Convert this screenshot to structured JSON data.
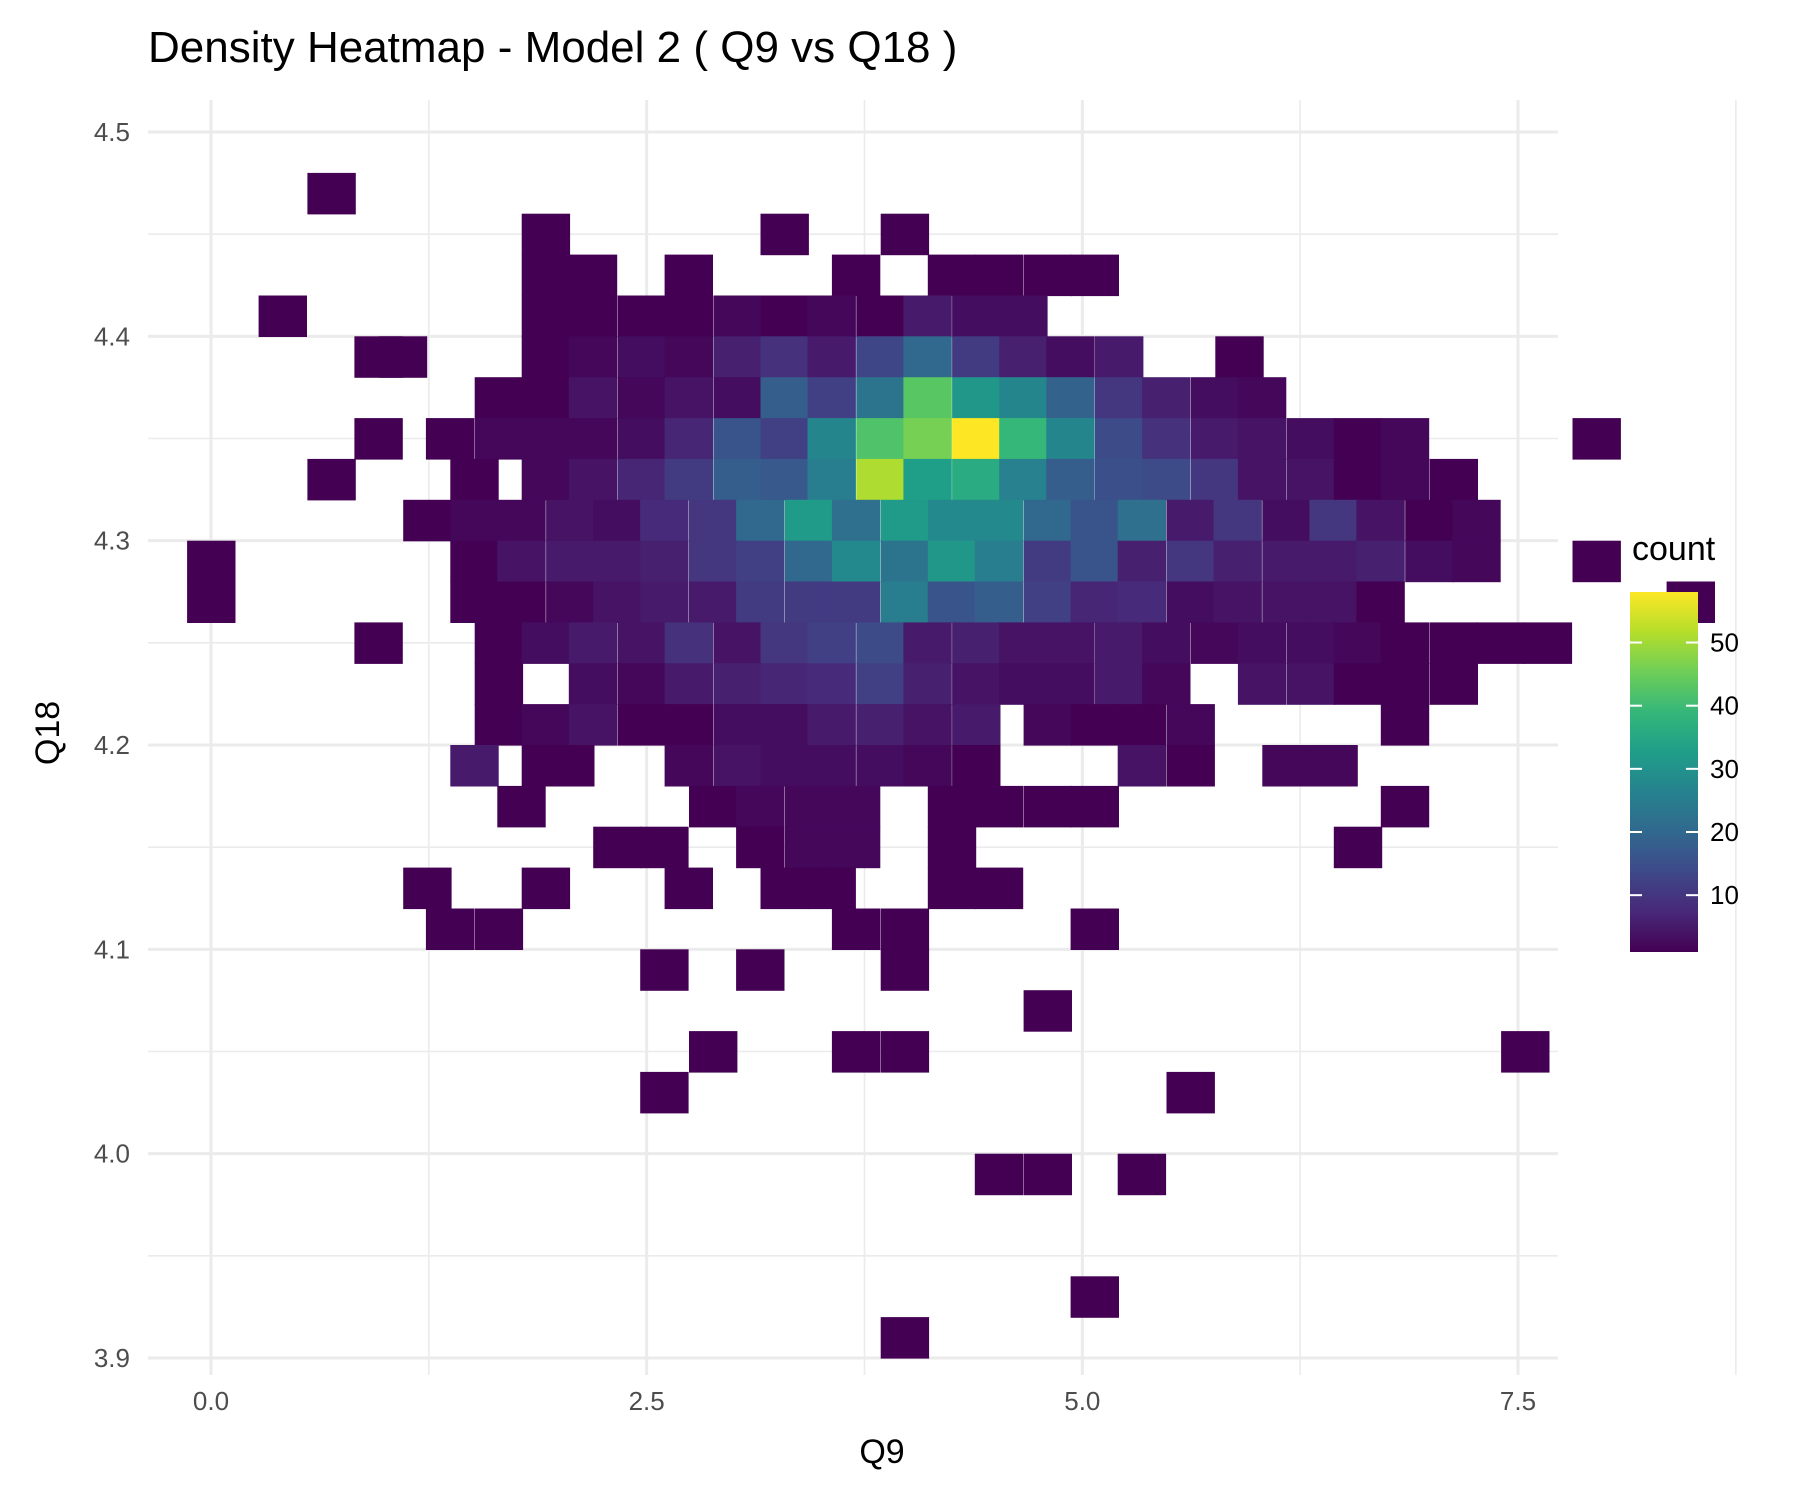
{
  "chart_data": {
    "type": "heatmap",
    "title": "Density Heatmap - Model 2 ( Q9 vs Q18 )",
    "xlabel": "Q9",
    "ylabel": "Q18",
    "xlim": [
      -0.2,
      8.8
    ],
    "ylim": [
      3.89,
      4.51
    ],
    "x_ticks": [
      0.0,
      2.5,
      5.0,
      7.5
    ],
    "x_tick_labels": [
      "0.0",
      "2.5",
      "5.0",
      "7.5"
    ],
    "y_ticks": [
      3.9,
      4.0,
      4.1,
      4.2,
      4.3,
      4.4,
      4.5
    ],
    "y_tick_labels": [
      "3.9",
      "4.0",
      "4.1",
      "4.2",
      "4.3",
      "4.4",
      "4.5"
    ],
    "bin_origin": {
      "x": 0.0,
      "y": 3.91
    },
    "bin_width": {
      "x": 0.2741,
      "y": 0.02
    },
    "grid": true,
    "legend": {
      "title": "count",
      "position": "right",
      "min": 1,
      "max": 58,
      "breaks": [
        10,
        20,
        30,
        40,
        50
      ],
      "break_labels": [
        "10",
        "20",
        "30",
        "40",
        "50"
      ]
    },
    "colormap": [
      "#440154",
      "#482878",
      "#3e4989",
      "#31688e",
      "#26828e",
      "#1f9e89",
      "#35b779",
      "#6ece58",
      "#b5de2b",
      "#fde725"
    ],
    "rows": [
      {
        "y": 4.47,
        "cells": [
          [
            0.69,
            1
          ]
        ]
      },
      {
        "y": 4.45,
        "cells": [
          [
            1.92,
            1
          ],
          [
            3.29,
            1
          ],
          [
            3.98,
            1
          ]
        ]
      },
      {
        "y": 4.43,
        "cells": [
          [
            1.92,
            1
          ],
          [
            2.19,
            1
          ],
          [
            2.74,
            1
          ],
          [
            3.7,
            1
          ],
          [
            4.25,
            1
          ],
          [
            4.52,
            1
          ],
          [
            4.8,
            1
          ],
          [
            5.07,
            1
          ]
        ]
      },
      {
        "y": 4.41,
        "cells": [
          [
            0.41,
            1
          ],
          [
            1.92,
            1
          ],
          [
            2.19,
            1
          ],
          [
            2.47,
            1
          ],
          [
            2.74,
            1
          ],
          [
            3.02,
            2
          ],
          [
            3.29,
            1
          ],
          [
            3.56,
            2
          ],
          [
            3.84,
            1
          ],
          [
            4.11,
            5
          ],
          [
            4.39,
            3
          ],
          [
            4.66,
            3
          ]
        ]
      },
      {
        "y": 4.39,
        "cells": [
          [
            0.96,
            1
          ],
          [
            1.1,
            1
          ],
          [
            1.92,
            1
          ],
          [
            2.19,
            2
          ],
          [
            2.47,
            3
          ],
          [
            2.74,
            2
          ],
          [
            3.02,
            6
          ],
          [
            3.29,
            9
          ],
          [
            3.56,
            5
          ],
          [
            3.84,
            13
          ],
          [
            4.11,
            20
          ],
          [
            4.39,
            11
          ],
          [
            4.66,
            6
          ],
          [
            4.93,
            3
          ],
          [
            5.21,
            5
          ],
          [
            5.9,
            1
          ]
        ]
      },
      {
        "y": 4.37,
        "cells": [
          [
            1.65,
            1
          ],
          [
            1.92,
            1
          ],
          [
            2.19,
            4
          ],
          [
            2.47,
            2
          ],
          [
            2.74,
            4
          ],
          [
            3.02,
            3
          ],
          [
            3.29,
            18
          ],
          [
            3.56,
            12
          ],
          [
            3.84,
            23
          ],
          [
            4.11,
            43
          ],
          [
            4.39,
            31
          ],
          [
            4.66,
            27
          ],
          [
            4.93,
            19
          ],
          [
            5.21,
            10
          ],
          [
            5.48,
            6
          ],
          [
            5.76,
            3
          ],
          [
            6.03,
            2
          ]
        ]
      },
      {
        "y": 4.35,
        "cells": [
          [
            0.96,
            1
          ],
          [
            1.37,
            1
          ],
          [
            1.65,
            2
          ],
          [
            1.92,
            2
          ],
          [
            2.19,
            2
          ],
          [
            2.47,
            3
          ],
          [
            2.74,
            7
          ],
          [
            3.02,
            16
          ],
          [
            3.29,
            12
          ],
          [
            3.56,
            27
          ],
          [
            3.84,
            42
          ],
          [
            4.11,
            46
          ],
          [
            4.39,
            58
          ],
          [
            4.66,
            39
          ],
          [
            4.93,
            27
          ],
          [
            5.21,
            14
          ],
          [
            5.48,
            9
          ],
          [
            5.76,
            5
          ],
          [
            6.03,
            4
          ],
          [
            6.31,
            3
          ],
          [
            6.58,
            1
          ],
          [
            6.85,
            2
          ],
          [
            7.95,
            1
          ]
        ]
      },
      {
        "y": 4.33,
        "cells": [
          [
            0.69,
            1
          ],
          [
            1.51,
            1
          ],
          [
            1.92,
            2
          ],
          [
            2.19,
            4
          ],
          [
            2.47,
            7
          ],
          [
            2.74,
            11
          ],
          [
            3.02,
            18
          ],
          [
            3.29,
            17
          ],
          [
            3.56,
            25
          ],
          [
            3.84,
            51
          ],
          [
            4.11,
            33
          ],
          [
            4.39,
            36
          ],
          [
            4.66,
            26
          ],
          [
            4.93,
            18
          ],
          [
            5.21,
            15
          ],
          [
            5.48,
            14
          ],
          [
            5.76,
            10
          ],
          [
            6.03,
            4
          ],
          [
            6.31,
            4
          ],
          [
            6.58,
            1
          ],
          [
            6.85,
            2
          ],
          [
            7.13,
            1
          ]
        ]
      },
      {
        "y": 4.31,
        "cells": [
          [
            1.24,
            1
          ],
          [
            1.51,
            2
          ],
          [
            1.78,
            2
          ],
          [
            2.06,
            4
          ],
          [
            2.33,
            3
          ],
          [
            2.6,
            8
          ],
          [
            2.88,
            10
          ],
          [
            3.15,
            20
          ],
          [
            3.43,
            32
          ],
          [
            3.7,
            22
          ],
          [
            3.98,
            32
          ],
          [
            4.25,
            28
          ],
          [
            4.52,
            28
          ],
          [
            4.8,
            20
          ],
          [
            5.07,
            16
          ],
          [
            5.34,
            22
          ],
          [
            5.62,
            5
          ],
          [
            5.89,
            10
          ],
          [
            6.17,
            3
          ],
          [
            6.44,
            10
          ],
          [
            6.71,
            4
          ],
          [
            6.99,
            1
          ],
          [
            7.26,
            2
          ]
        ]
      },
      {
        "y": 4.29,
        "cells": [
          [
            0.0,
            1
          ],
          [
            1.51,
            1
          ],
          [
            1.78,
            4
          ],
          [
            2.06,
            5
          ],
          [
            2.33,
            5
          ],
          [
            2.6,
            6
          ],
          [
            2.88,
            10
          ],
          [
            3.15,
            12
          ],
          [
            3.43,
            20
          ],
          [
            3.7,
            28
          ],
          [
            3.98,
            23
          ],
          [
            4.25,
            31
          ],
          [
            4.52,
            25
          ],
          [
            4.8,
            11
          ],
          [
            5.07,
            16
          ],
          [
            5.34,
            6
          ],
          [
            5.62,
            10
          ],
          [
            5.89,
            6
          ],
          [
            6.17,
            5
          ],
          [
            6.44,
            5
          ],
          [
            6.71,
            6
          ],
          [
            6.99,
            3
          ],
          [
            7.26,
            2
          ],
          [
            7.95,
            1
          ]
        ]
      },
      {
        "y": 4.27,
        "cells": [
          [
            0.0,
            1
          ],
          [
            8.49,
            1
          ],
          [
            1.51,
            1
          ],
          [
            1.78,
            1
          ],
          [
            2.06,
            2
          ],
          [
            2.33,
            4
          ],
          [
            2.6,
            5
          ],
          [
            2.88,
            5
          ],
          [
            3.15,
            11
          ],
          [
            3.43,
            11
          ],
          [
            3.7,
            11
          ],
          [
            3.98,
            25
          ],
          [
            4.25,
            16
          ],
          [
            4.52,
            18
          ],
          [
            4.8,
            12
          ],
          [
            5.07,
            7
          ],
          [
            5.34,
            8
          ],
          [
            5.62,
            3
          ],
          [
            5.89,
            4
          ],
          [
            6.17,
            4
          ],
          [
            6.44,
            4
          ],
          [
            6.71,
            1
          ]
        ]
      },
      {
        "y": 4.25,
        "cells": [
          [
            0.96,
            1
          ],
          [
            1.65,
            1
          ],
          [
            1.92,
            3
          ],
          [
            2.19,
            5
          ],
          [
            2.47,
            4
          ],
          [
            2.74,
            9
          ],
          [
            3.02,
            4
          ],
          [
            3.29,
            10
          ],
          [
            3.56,
            12
          ],
          [
            3.84,
            14
          ],
          [
            4.11,
            5
          ],
          [
            4.39,
            6
          ],
          [
            4.66,
            4
          ],
          [
            4.93,
            4
          ],
          [
            5.21,
            5
          ],
          [
            5.48,
            3
          ],
          [
            5.76,
            2
          ],
          [
            6.03,
            3
          ],
          [
            6.31,
            3
          ],
          [
            6.58,
            2
          ],
          [
            6.85,
            1
          ],
          [
            7.13,
            1
          ],
          [
            7.4,
            1
          ],
          [
            7.67,
            1
          ]
        ]
      },
      {
        "y": 4.23,
        "cells": [
          [
            1.65,
            1
          ],
          [
            2.19,
            3
          ],
          [
            2.47,
            2
          ],
          [
            2.74,
            5
          ],
          [
            3.02,
            6
          ],
          [
            3.29,
            7
          ],
          [
            3.56,
            8
          ],
          [
            3.84,
            12
          ],
          [
            4.11,
            6
          ],
          [
            4.39,
            4
          ],
          [
            4.66,
            3
          ],
          [
            4.93,
            3
          ],
          [
            5.21,
            5
          ],
          [
            5.48,
            2
          ],
          [
            6.03,
            4
          ],
          [
            6.31,
            4
          ],
          [
            6.58,
            1
          ],
          [
            6.85,
            1
          ],
          [
            7.13,
            1
          ]
        ]
      },
      {
        "y": 4.21,
        "cells": [
          [
            1.65,
            1
          ],
          [
            1.92,
            2
          ],
          [
            2.19,
            4
          ],
          [
            2.47,
            1
          ],
          [
            2.74,
            1
          ],
          [
            3.02,
            3
          ],
          [
            3.29,
            3
          ],
          [
            3.56,
            5
          ],
          [
            3.84,
            6
          ],
          [
            4.11,
            4
          ],
          [
            4.39,
            5
          ],
          [
            4.8,
            2
          ],
          [
            5.07,
            1
          ],
          [
            5.34,
            1
          ],
          [
            5.62,
            2
          ],
          [
            6.85,
            1
          ]
        ]
      },
      {
        "y": 4.19,
        "cells": [
          [
            1.51,
            5
          ],
          [
            1.92,
            1
          ],
          [
            2.06,
            1
          ],
          [
            2.74,
            2
          ],
          [
            3.02,
            4
          ],
          [
            3.29,
            3
          ],
          [
            3.56,
            3
          ],
          [
            3.84,
            3
          ],
          [
            4.11,
            2
          ],
          [
            4.39,
            1
          ],
          [
            5.34,
            4
          ],
          [
            5.62,
            1
          ],
          [
            6.17,
            2
          ],
          [
            6.44,
            2
          ]
        ]
      },
      {
        "y": 4.17,
        "cells": [
          [
            1.78,
            1
          ],
          [
            2.88,
            1
          ],
          [
            3.15,
            2
          ],
          [
            3.43,
            2
          ],
          [
            3.7,
            2
          ],
          [
            4.25,
            1
          ],
          [
            4.52,
            1
          ],
          [
            4.8,
            1
          ],
          [
            5.07,
            1
          ],
          [
            6.85,
            1
          ]
        ]
      },
      {
        "y": 4.15,
        "cells": [
          [
            2.33,
            1
          ],
          [
            2.6,
            1
          ],
          [
            3.15,
            1
          ],
          [
            3.43,
            2
          ],
          [
            3.7,
            2
          ],
          [
            4.25,
            1
          ],
          [
            6.58,
            1
          ]
        ]
      },
      {
        "y": 4.13,
        "cells": [
          [
            1.24,
            1
          ],
          [
            1.92,
            1
          ],
          [
            2.74,
            1
          ],
          [
            3.29,
            1
          ],
          [
            3.56,
            1
          ],
          [
            4.25,
            1
          ],
          [
            4.52,
            1
          ]
        ]
      },
      {
        "y": 4.11,
        "cells": [
          [
            1.37,
            1
          ],
          [
            1.65,
            1
          ],
          [
            3.7,
            1
          ],
          [
            3.98,
            1
          ],
          [
            5.07,
            1
          ]
        ]
      },
      {
        "y": 4.09,
        "cells": [
          [
            2.6,
            1
          ],
          [
            3.15,
            1
          ],
          [
            3.98,
            1
          ]
        ]
      },
      {
        "y": 4.07,
        "cells": [
          [
            4.8,
            1
          ]
        ]
      },
      {
        "y": 4.05,
        "cells": [
          [
            2.88,
            1
          ],
          [
            3.7,
            1
          ],
          [
            3.98,
            1
          ],
          [
            7.54,
            1
          ]
        ]
      },
      {
        "y": 4.03,
        "cells": [
          [
            2.6,
            1
          ],
          [
            5.62,
            1
          ]
        ]
      },
      {
        "y": 3.99,
        "cells": [
          [
            4.52,
            1
          ],
          [
            4.8,
            1
          ],
          [
            5.34,
            1
          ]
        ]
      },
      {
        "y": 3.93,
        "cells": [
          [
            5.07,
            1
          ]
        ]
      },
      {
        "y": 3.91,
        "cells": [
          [
            3.98,
            1
          ]
        ]
      }
    ]
  }
}
